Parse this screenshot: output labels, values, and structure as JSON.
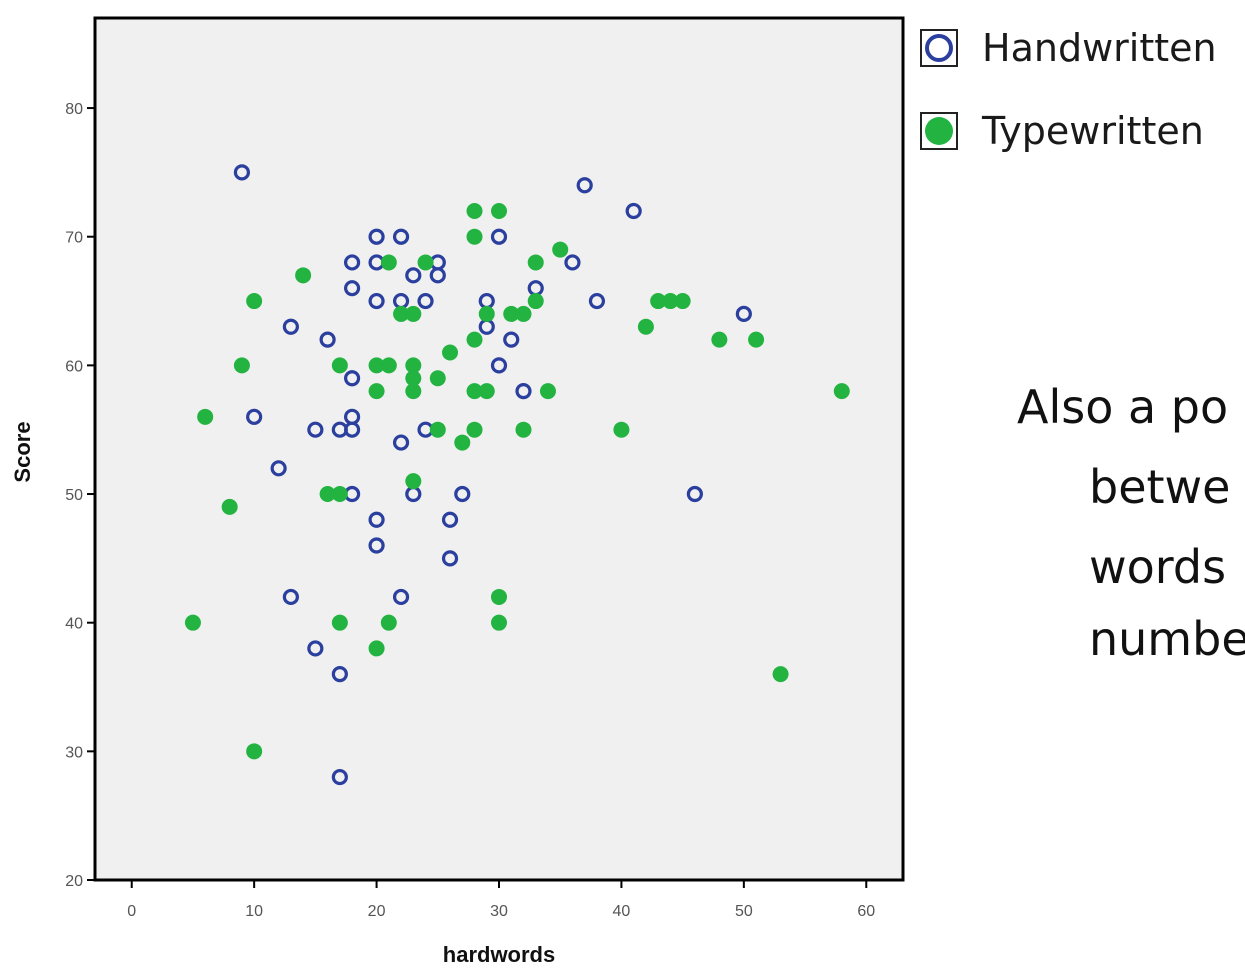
{
  "chart_data": {
    "type": "scatter",
    "xlabel": "hardwords",
    "ylabel": "Score",
    "xlim": [
      -3,
      63
    ],
    "ylim": [
      20,
      87
    ],
    "xticks": [
      0,
      10,
      20,
      30,
      40,
      50,
      60
    ],
    "yticks": [
      20,
      30,
      40,
      50,
      60,
      70,
      80
    ],
    "legend_position": "top-right outside",
    "series": [
      {
        "name": "Handwritten",
        "marker": "open-circle",
        "color": "#2b3f9e",
        "points": [
          [
            9,
            75
          ],
          [
            37,
            74
          ],
          [
            41,
            72
          ],
          [
            20,
            70
          ],
          [
            22,
            70
          ],
          [
            30,
            70
          ],
          [
            18,
            68
          ],
          [
            20,
            68
          ],
          [
            25,
            68
          ],
          [
            23,
            67
          ],
          [
            25,
            67
          ],
          [
            36,
            68
          ],
          [
            33,
            66
          ],
          [
            18,
            66
          ],
          [
            20,
            65
          ],
          [
            22,
            65
          ],
          [
            24,
            65
          ],
          [
            29,
            65
          ],
          [
            38,
            65
          ],
          [
            50,
            64
          ],
          [
            13,
            63
          ],
          [
            29,
            63
          ],
          [
            16,
            62
          ],
          [
            31,
            62
          ],
          [
            30,
            60
          ],
          [
            18,
            59
          ],
          [
            32,
            58
          ],
          [
            10,
            56
          ],
          [
            18,
            56
          ],
          [
            15,
            55
          ],
          [
            17,
            55
          ],
          [
            18,
            55
          ],
          [
            24,
            55
          ],
          [
            22,
            54
          ],
          [
            12,
            52
          ],
          [
            18,
            50
          ],
          [
            23,
            50
          ],
          [
            27,
            50
          ],
          [
            46,
            50
          ],
          [
            20,
            48
          ],
          [
            26,
            48
          ],
          [
            20,
            46
          ],
          [
            26,
            45
          ],
          [
            13,
            42
          ],
          [
            22,
            42
          ],
          [
            15,
            38
          ],
          [
            17,
            36
          ],
          [
            17,
            28
          ]
        ]
      },
      {
        "name": "Typewritten",
        "marker": "filled-circle",
        "color": "#22b340",
        "points": [
          [
            28,
            72
          ],
          [
            30,
            72
          ],
          [
            28,
            70
          ],
          [
            35,
            69
          ],
          [
            14,
            67
          ],
          [
            21,
            68
          ],
          [
            24,
            68
          ],
          [
            33,
            68
          ],
          [
            10,
            65
          ],
          [
            33,
            65
          ],
          [
            43,
            65
          ],
          [
            44,
            65
          ],
          [
            45,
            65
          ],
          [
            22,
            64
          ],
          [
            23,
            64
          ],
          [
            29,
            64
          ],
          [
            31,
            64
          ],
          [
            32,
            64
          ],
          [
            42,
            63
          ],
          [
            28,
            62
          ],
          [
            48,
            62
          ],
          [
            51,
            62
          ],
          [
            26,
            61
          ],
          [
            9,
            60
          ],
          [
            17,
            60
          ],
          [
            20,
            60
          ],
          [
            21,
            60
          ],
          [
            23,
            60
          ],
          [
            23,
            59
          ],
          [
            25,
            59
          ],
          [
            20,
            58
          ],
          [
            23,
            58
          ],
          [
            28,
            58
          ],
          [
            29,
            58
          ],
          [
            34,
            58
          ],
          [
            58,
            58
          ],
          [
            6,
            56
          ],
          [
            25,
            55
          ],
          [
            28,
            55
          ],
          [
            32,
            55
          ],
          [
            40,
            55
          ],
          [
            27,
            54
          ],
          [
            23,
            51
          ],
          [
            16,
            50
          ],
          [
            17,
            50
          ],
          [
            8,
            49
          ],
          [
            5,
            40
          ],
          [
            17,
            40
          ],
          [
            21,
            40
          ],
          [
            30,
            40
          ],
          [
            30,
            42
          ],
          [
            20,
            38
          ],
          [
            53,
            36
          ],
          [
            10,
            30
          ]
        ]
      }
    ]
  },
  "legend": {
    "handwritten_label": "Handwritten",
    "typewritten_label": "Typewritten"
  },
  "slide_text": {
    "line1": "Also a po",
    "line2": "betwe",
    "line3": "words",
    "line4": "numbe"
  }
}
